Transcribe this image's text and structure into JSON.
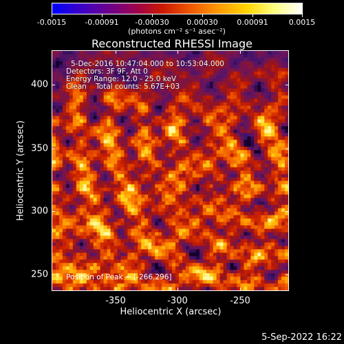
{
  "colorbar": {
    "tick_labels": [
      "-0.0015",
      "-0.00091",
      "-0.00030",
      "0.00030",
      "0.00091",
      "0.0015"
    ],
    "units": "(photons cm⁻² s⁻¹ asec⁻²)",
    "colors": [
      "#0000ff",
      "#3a00c8",
      "#6a0090",
      "#9c0050",
      "#cc1a00",
      "#ef5a00",
      "#ff9a00",
      "#ffd400",
      "#ffff80",
      "#ffffff"
    ]
  },
  "title": "Reconstructed RHESSI Image",
  "info": {
    "line0": "5-Dec-2016 10:47:04.000 to 10:53:04.000",
    "line1": "Detectors: 3F 9F, Att 0",
    "line2": "Energy Range: 12.0 - 25.0 keV",
    "line3": "Clean    Total counts: 5.67E+03"
  },
  "peak_text": "Position of Peak = [-266,296]",
  "axes": {
    "xlabel": "Heliocentric X (arcsec)",
    "ylabel": "Heliocentric Y (arcsec)",
    "xticks": [
      "-350",
      "-300",
      "-250"
    ],
    "yticks": [
      "400",
      "350",
      "300",
      "250"
    ],
    "xlim": [
      -397,
      -213
    ],
    "ylim": [
      233,
      420
    ]
  },
  "datestamp": "5-Sep-2022 16:22"
}
